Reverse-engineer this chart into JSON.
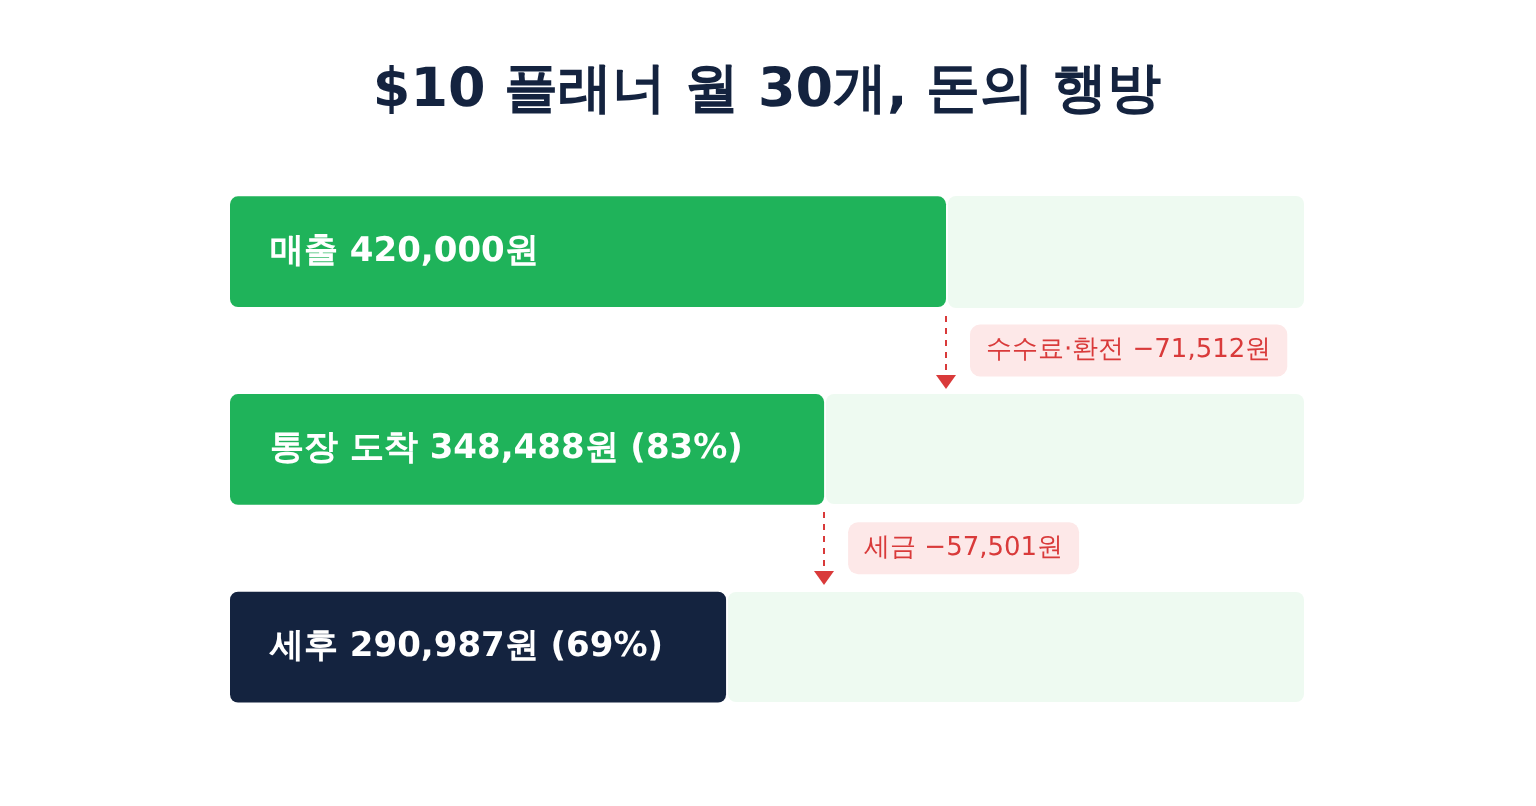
{
  "chart_data": {
    "type": "bar",
    "orientation": "horizontal",
    "title": "$10 플래너 월 30개, 돈의 행방",
    "categories": [
      null,
      null,
      null
    ],
    "values": [
      420000,
      348488,
      290987
    ],
    "colors": [
      "#1fb35a",
      "#1fb35a",
      "#14233f"
    ],
    "value_labels": [
      "매출 420,000원",
      "통장 도착 348,488원 (83%)",
      "세후 290,987원 (69%)"
    ],
    "xlim": [
      0,
      630000
    ],
    "tick_labels": false,
    "grid": false,
    "legend": false,
    "annotations": [
      "수수료·환전 −71,512원",
      "세금 −57,501원"
    ]
  }
}
